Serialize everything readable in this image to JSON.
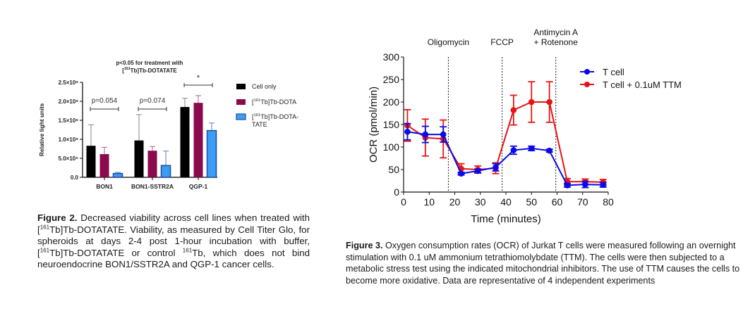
{
  "chart_data": [
    {
      "type": "bar",
      "title": "p<0.05 for treatment with [161Tb]Tb-DOTATATE",
      "title_lines": [
        "p<0.05 for treatment with",
        "[161Tb]Tb-DOTATATE"
      ],
      "xlabel": "",
      "ylabel": "Relative light units",
      "ylim": [
        0,
        2500000
      ],
      "yticks": [
        0,
        500000,
        1000000,
        1500000,
        2000000,
        2500000
      ],
      "ytick_labels": [
        "0.0",
        "5.0×10⁵",
        "1.0×10⁶",
        "1.5×10⁶",
        "2.0×10⁶",
        "2.5×10⁶"
      ],
      "categories": [
        "BON1",
        "BON1-SSTR2A",
        "QGP-1"
      ],
      "series": [
        {
          "name": "Cell only",
          "color": "#000000",
          "values": [
            830000,
            970000,
            1850000
          ],
          "error_upper": [
            1380000,
            1650000,
            2080000
          ]
        },
        {
          "name": "[161Tb]Tb-DOTA",
          "color": "#8b0a4e",
          "values": [
            610000,
            700000,
            1960000
          ],
          "error_upper": [
            790000,
            810000,
            2150000
          ]
        },
        {
          "name": "[161Tb]Tb-DOTA-TATE",
          "color": "#3d9cf5",
          "values": [
            100000,
            310000,
            1230000
          ],
          "error_upper": [
            130000,
            690000,
            1430000
          ]
        }
      ],
      "legend": {
        "placement": "right",
        "entries": [
          {
            "label_lines": [
              "Cell only"
            ]
          },
          {
            "label_lines": [
              "[161Tb]Tb-DOTA"
            ]
          },
          {
            "label_lines": [
              "[161Tb]Tb-DOTA-",
              "TATE"
            ]
          }
        ]
      },
      "annotations": [
        {
          "category": "BON1",
          "text": "p=0.054"
        },
        {
          "category": "BON1-SSTR2A",
          "text": "p=0.074"
        },
        {
          "category": "QGP-1",
          "text": "*"
        }
      ],
      "grid": false
    },
    {
      "type": "line",
      "title": "",
      "xlabel": "Time (minutes)",
      "ylabel": "OCR (pmol/min)",
      "xlim": [
        0,
        80
      ],
      "ylim": [
        0,
        300
      ],
      "xticks": [
        0,
        10,
        20,
        30,
        40,
        50,
        60,
        70,
        80
      ],
      "yticks": [
        0,
        50,
        100,
        150,
        200,
        250,
        300
      ],
      "x": [
        1.5,
        8.5,
        15.5,
        22.5,
        29,
        36,
        43,
        50,
        57,
        64,
        71,
        78
      ],
      "series": [
        {
          "name": "T cell",
          "color": "#0a0ae6",
          "values": [
            134,
            128,
            128,
            41,
            47,
            55,
            93,
            97,
            92,
            15,
            17,
            16
          ],
          "error": [
            18,
            18,
            17,
            3,
            4,
            8,
            9,
            5,
            3,
            4,
            7,
            5
          ]
        },
        {
          "name": "T cell + 0.1uM TTM",
          "color": "#e61414",
          "values": [
            148,
            121,
            118,
            52,
            50,
            53,
            182,
            200,
            200,
            23,
            23,
            22
          ],
          "error": [
            35,
            41,
            42,
            11,
            8,
            12,
            33,
            45,
            45,
            7,
            6,
            6
          ]
        }
      ],
      "injections": [
        {
          "x": 17.5,
          "label_lines": [
            "Oligomycin"
          ]
        },
        {
          "x": 38.5,
          "label_lines": [
            "FCCP"
          ]
        },
        {
          "x": 59.5,
          "label_lines": [
            "Antimycin A",
            "+ Rotenone"
          ]
        }
      ],
      "legend": {
        "placement": "top-right"
      },
      "grid": false
    }
  ],
  "captions": {
    "left": {
      "label": "Figure 2.",
      "text_1": " Decreased viability across cell lines when treated with [",
      "sup_1": "161",
      "text_2": "Tb]Tb-DOTATATE. Viability, as measured by Cell Titer Glo, for spheroids at days 2-4 post 1-hour incubation with buffer, [",
      "sup_2": "161",
      "text_3": "Tb]Tb-DOTATATE or control ",
      "sup_3": "161",
      "text_4": "Tb, which does not bind neuroendocrine BON1/SSTR2A and QGP-1 cancer cells."
    },
    "right": {
      "label": "Figure 3.",
      "text": " Oxygen consumption rates (OCR) of Jurkat T cells were measured following an overnight stimulation with 0.1 uM ammonium tetrathiomolybdate (TTM). The cells were then subjected to a metabolic stress test using the indicated mitochondrial inhibitors. The use of TTM causes the cells to become more oxidative. Data are representative of 4 independent experiments"
    }
  }
}
